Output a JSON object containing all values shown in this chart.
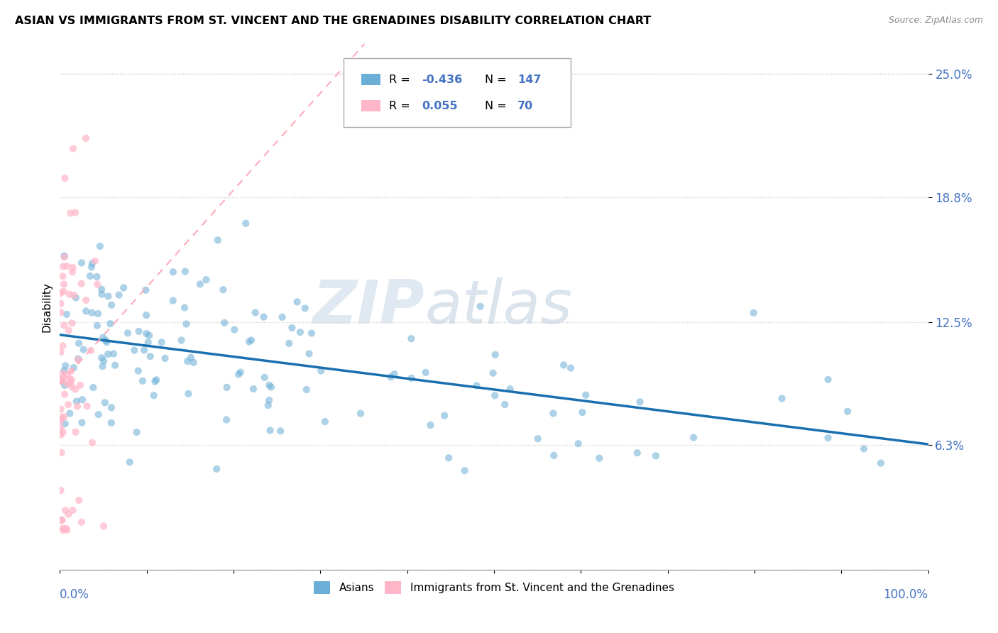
{
  "title": "ASIAN VS IMMIGRANTS FROM ST. VINCENT AND THE GRENADINES DISABILITY CORRELATION CHART",
  "source": "Source: ZipAtlas.com",
  "ylabel": "Disability",
  "ytick_vals": [
    0.063,
    0.125,
    0.188,
    0.25
  ],
  "ytick_labels": [
    "6.3%",
    "12.5%",
    "18.8%",
    "25.0%"
  ],
  "xlim": [
    0.0,
    1.0
  ],
  "ylim": [
    0.0,
    0.265
  ],
  "color_asian": "#6baed6",
  "color_svg": "#ffb6c8",
  "color_trend_asian": "#1a6faf",
  "color_trend_svg": "#ffaabb",
  "watermark_zip": "ZIP",
  "watermark_atlas": "atlas",
  "scatter_size": 55
}
